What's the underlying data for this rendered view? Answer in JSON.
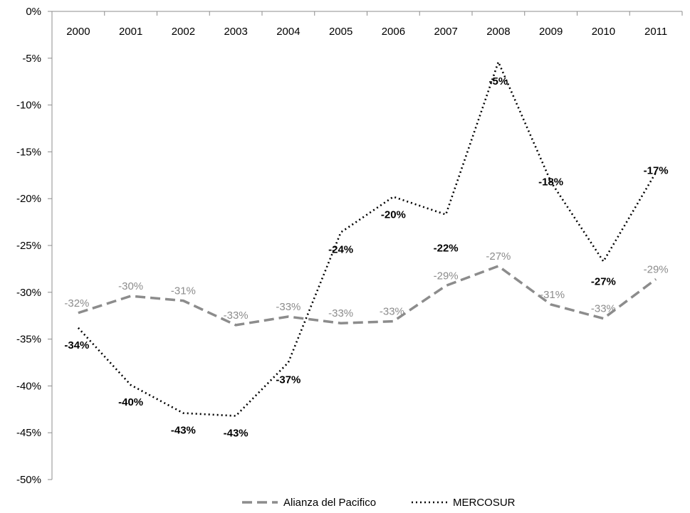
{
  "chart_data": {
    "type": "line",
    "categories": [
      "2000",
      "2001",
      "2002",
      "2003",
      "2004",
      "2005",
      "2006",
      "2007",
      "2008",
      "2009",
      "2010",
      "2011"
    ],
    "x_axis_position": "top",
    "ylim": [
      -50,
      0
    ],
    "y_ticks": [
      0,
      -5,
      -10,
      -15,
      -20,
      -25,
      -30,
      -35,
      -40,
      -45,
      -50
    ],
    "y_tick_labels": [
      "0%",
      "-5%",
      "-10%",
      "-15%",
      "-20%",
      "-25%",
      "-30%",
      "-35%",
      "-40%",
      "-45%",
      "-50%"
    ],
    "grid": false,
    "legend_position": "bottom-center",
    "series": [
      {
        "name": "Alianza del Pacifico",
        "style": "dashed",
        "color": "#8c8c8c",
        "values": [
          -32.2,
          -30.4,
          -30.9,
          -33.5,
          -32.6,
          -33.3,
          -33.1,
          -29.3,
          -27.2,
          -31.3,
          -32.8,
          -28.6
        ],
        "labels": [
          "-32%",
          "-30%",
          "-31%",
          "-33%",
          "-33%",
          "-33%",
          "-33%",
          "-29%",
          "-27%",
          "-31%",
          "-33%",
          "-29%"
        ]
      },
      {
        "name": "MERCOSUR",
        "style": "dotted",
        "color": "#000000",
        "values": [
          -33.8,
          -39.9,
          -42.9,
          -43.2,
          -37.5,
          -23.6,
          -19.8,
          -21.7,
          -5.4,
          -18.2,
          -26.7,
          -17.2
        ],
        "labels": [
          "-34%",
          "-40%",
          "-43%",
          "-43%",
          "-37%",
          "-24%",
          "-20%",
          "-22%",
          "-5%",
          "-18%",
          "-27%",
          "-17%"
        ]
      }
    ]
  }
}
